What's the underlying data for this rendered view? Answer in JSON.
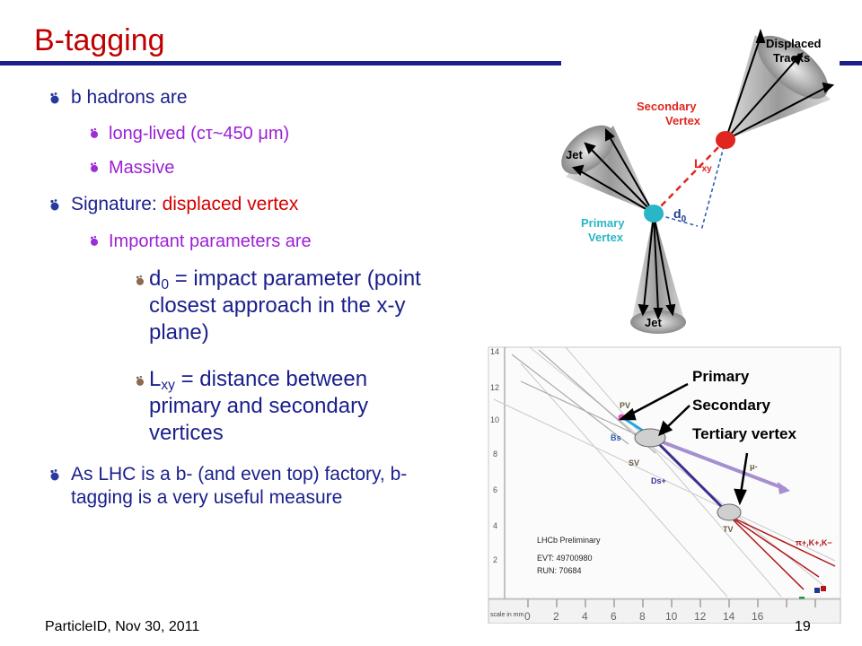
{
  "title": "B-tagging",
  "bullets": {
    "b1": "b hadrons are",
    "b1a": "long-lived (cτ~450 μm)",
    "b1b": "Massive",
    "b2_prefix": "Signature: ",
    "b2_highlight": "displaced vertex",
    "b2a": "Important parameters are",
    "d0_sym": "d",
    "d0_sub": "0",
    "d0_text": " = impact parameter (point closest approach in the x-y plane)",
    "lxy_sym": "L",
    "lxy_sub": "xy",
    "lxy_text": " = distance between primary and secondary vertices",
    "b3": "As LHC is a b- (and even top) factory, b-tagging is a very useful measure"
  },
  "diagram": {
    "displaced_tracks_1": "Displaced",
    "displaced_tracks_2": "Tracks",
    "secondary_vertex_1": "Secondary",
    "secondary_vertex_2": "Vertex",
    "jet_top": "Jet",
    "jet_bottom": "Jet",
    "lxy_L": "L",
    "lxy_sub": "xy",
    "d0_d": "d",
    "d0_sub": "0",
    "primary_vertex_1": "Primary",
    "primary_vertex_2": "Vertex"
  },
  "event": {
    "y_ticks": [
      "14",
      "12",
      "10",
      "8",
      "6",
      "4",
      "2"
    ],
    "x_ticks": [
      "0",
      "2",
      "4",
      "6",
      "8",
      "10",
      "12",
      "14",
      "16"
    ],
    "pv": "PV",
    "bs": "B̅s",
    "sv": "SV",
    "ds": "Ds+",
    "mu": "μ-",
    "tv": "TV",
    "pions": "π+,K+,K−",
    "lhcb": "LHCb Preliminary",
    "evt": "EVT: 49700980",
    "run": "RUN: 70684",
    "scale": "scale in mm"
  },
  "overlay": {
    "primary": "Primary",
    "secondary": "Secondary",
    "tertiary": "Tertiary vertex"
  },
  "footer": {
    "left": "ParticleID, Nov 30, 2011",
    "page": "19"
  }
}
